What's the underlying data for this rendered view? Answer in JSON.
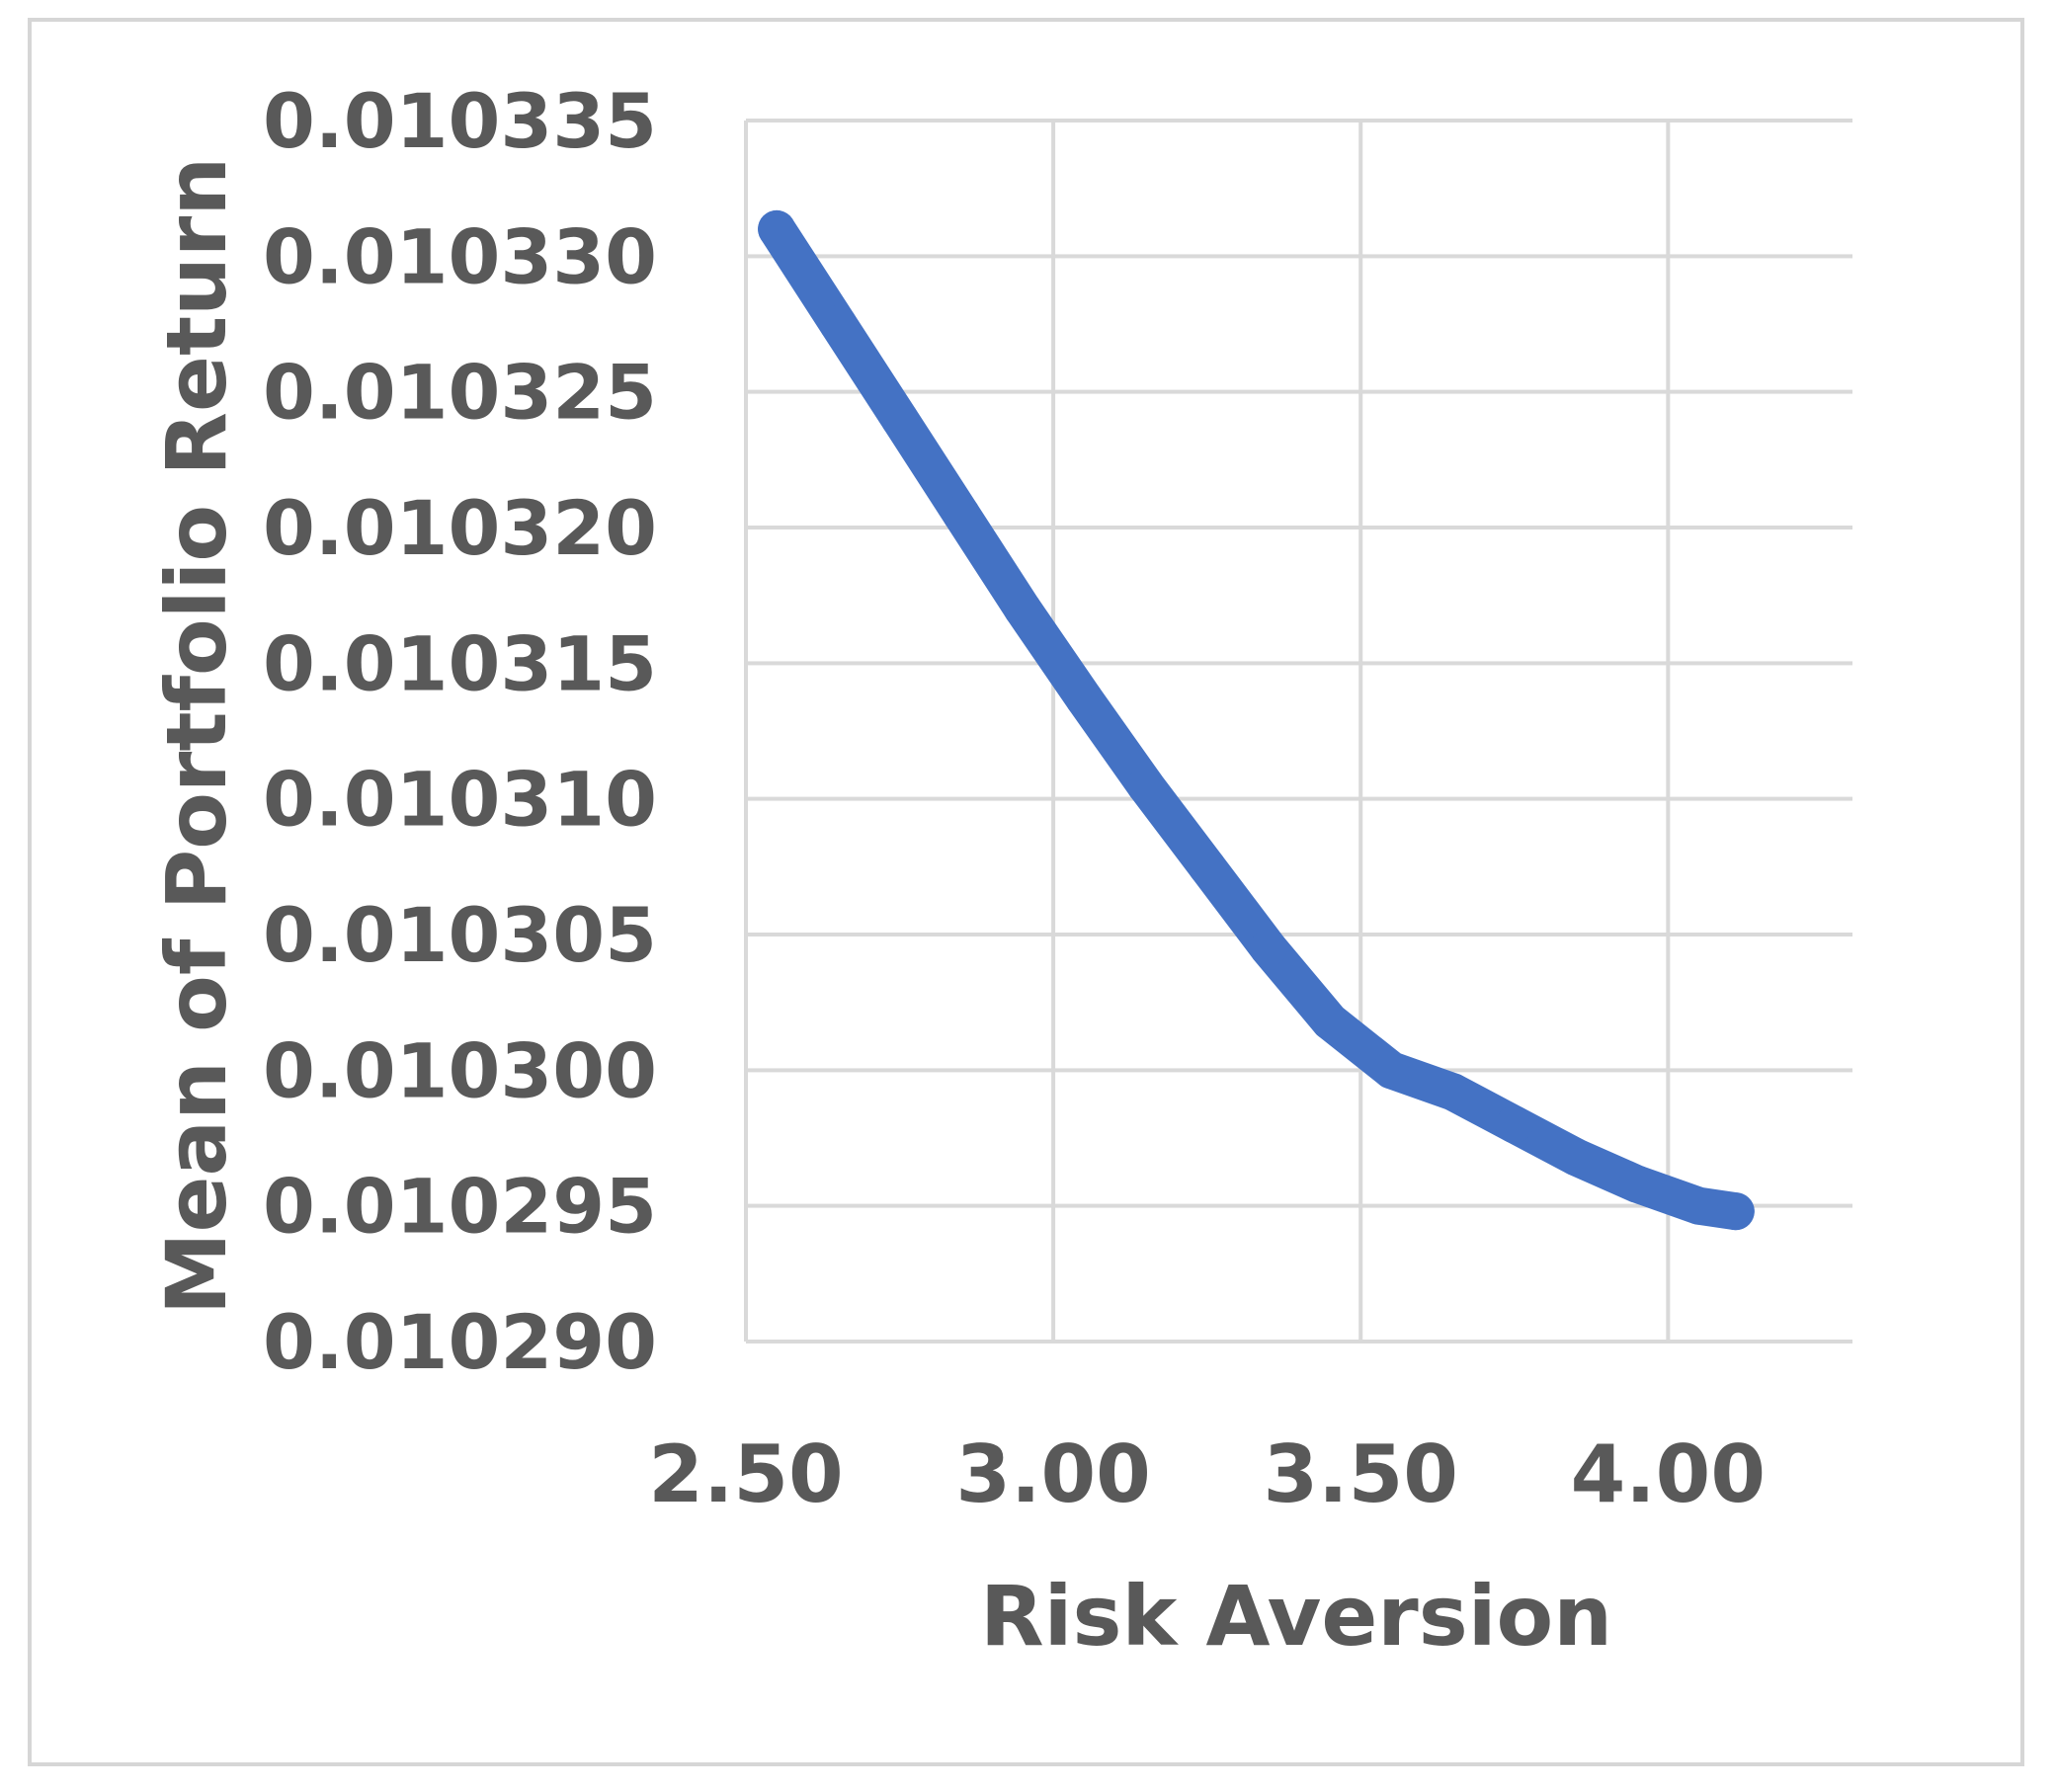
{
  "chart_data": {
    "type": "line",
    "title": "",
    "xlabel": "Risk Aversion",
    "ylabel": "Mean of Portfolio Return",
    "xlim": [
      2.5,
      4.3
    ],
    "ylim": [
      0.01029,
      0.010335
    ],
    "x_ticks": [
      2.5,
      3.0,
      3.5,
      4.0
    ],
    "x_tick_labels": [
      "2.50",
      "3.00",
      "3.50",
      "4.00"
    ],
    "y_ticks": [
      0.01029,
      0.010295,
      0.0103,
      0.010305,
      0.01031,
      0.010315,
      0.01032,
      0.010325,
      0.01033,
      0.010335
    ],
    "y_tick_labels": [
      "0.010290",
      "0.010295",
      "0.010300",
      "0.010305",
      "0.010310",
      "0.010315",
      "0.010320",
      "0.010325",
      "0.010330",
      "0.010335"
    ],
    "grid": true,
    "legend": "none",
    "series": [
      {
        "color": "#4472C4",
        "x": [
          2.55,
          2.65,
          2.75,
          2.85,
          2.95,
          3.05,
          3.15,
          3.25,
          3.35,
          3.45,
          3.55,
          3.65,
          3.75,
          3.85,
          3.95,
          4.05,
          4.11
        ],
        "y": [
          0.010331,
          0.0103275,
          0.010324,
          0.0103205,
          0.010317,
          0.0103137,
          0.0103105,
          0.0103075,
          0.0103045,
          0.0103018,
          0.0103,
          0.0102992,
          0.010298,
          0.0102968,
          0.0102958,
          0.010295,
          0.0102948
        ]
      }
    ]
  }
}
